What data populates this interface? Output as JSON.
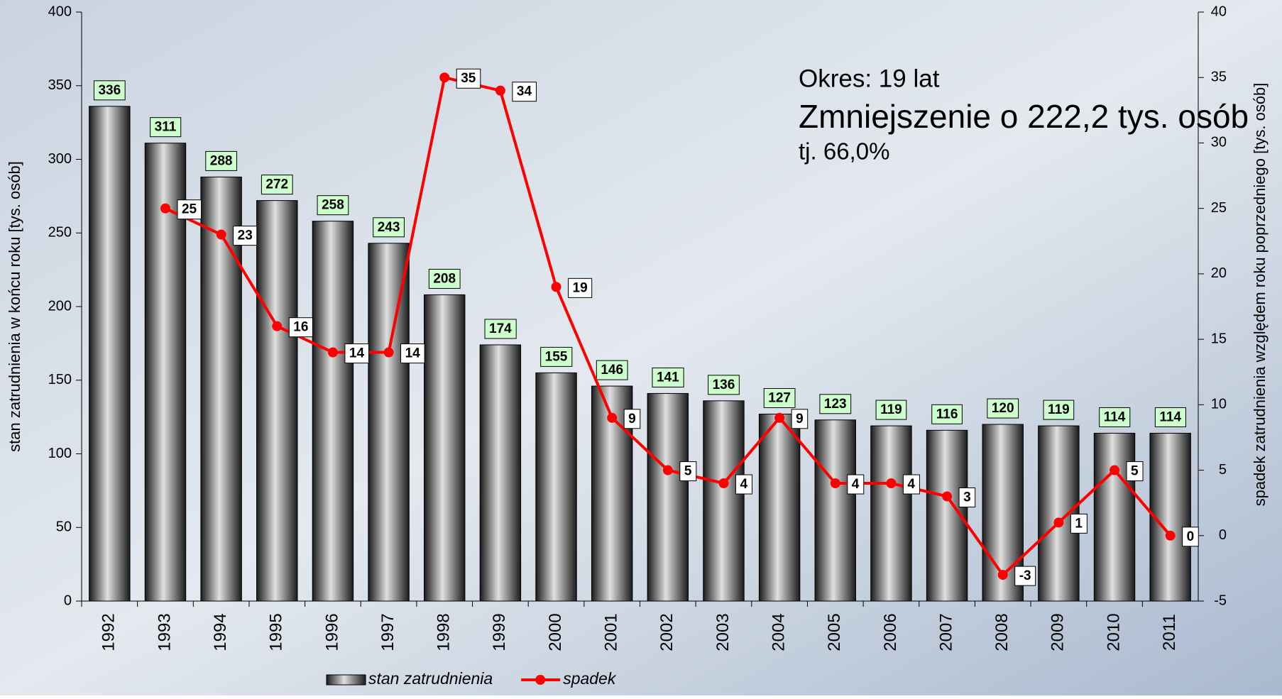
{
  "chart_data": {
    "type": "bar",
    "categories": [
      "1992",
      "1993",
      "1994",
      "1995",
      "1996",
      "1997",
      "1998",
      "1999",
      "2000",
      "2001",
      "2002",
      "2003",
      "2004",
      "2005",
      "2006",
      "2007",
      "2008",
      "2009",
      "2010",
      "2011"
    ],
    "series": [
      {
        "name": "stan zatrudnienia",
        "type": "bar",
        "color": "#555555",
        "axis": "y",
        "values": [
          336,
          311,
          288,
          272,
          258,
          243,
          208,
          174,
          155,
          146,
          141,
          136,
          127,
          123,
          119,
          116,
          120,
          119,
          114,
          114
        ]
      },
      {
        "name": "spadek",
        "type": "line",
        "color": "#ff0000",
        "axis": "y2",
        "values": [
          null,
          25,
          23,
          16,
          14,
          14,
          35,
          34,
          19,
          9,
          5,
          4,
          9,
          4,
          4,
          3,
          -3,
          1,
          5,
          0
        ]
      }
    ],
    "ylabel": "stan zatrudnienia w końcu roku [tys. osób]",
    "y2label": "spadek zatrudnienia względem roku poprzedniego [tys. osób]",
    "ylim": [
      0,
      400
    ],
    "yticks": [
      0,
      50,
      100,
      150,
      200,
      250,
      300,
      350,
      400
    ],
    "y2lim": [
      -5,
      40
    ],
    "y2ticks": [
      -5,
      0,
      5,
      10,
      15,
      20,
      25,
      30,
      35,
      40
    ],
    "annotations": [
      "Okres: 19 lat",
      "Zmniejszenie o  222,2 tys. osób",
      "tj. 66,0%"
    ],
    "legend": "bottom"
  }
}
